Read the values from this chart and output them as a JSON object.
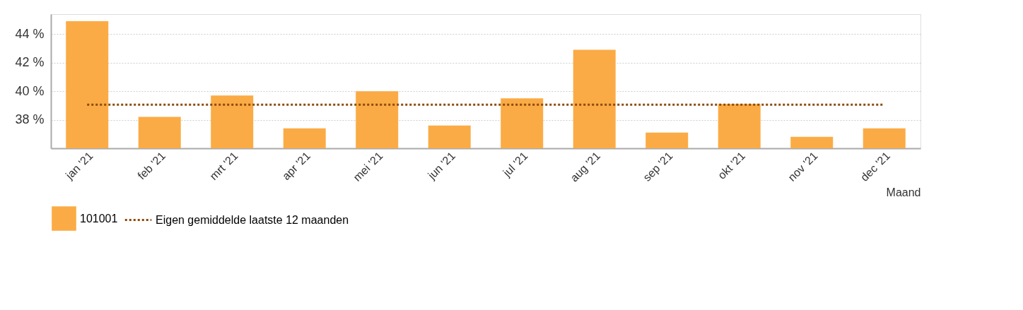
{
  "chart_data": {
    "type": "bar",
    "categories": [
      "jan '21",
      "feb '21",
      "mrt '21",
      "apr '21",
      "mei '21",
      "jun '21",
      "jul '21",
      "aug '21",
      "sep '21",
      "okt '21",
      "nov '21",
      "dec '21"
    ],
    "series": [
      {
        "name": "101001",
        "color": "#fbab45",
        "values": [
          44.9,
          38.2,
          39.7,
          37.4,
          40.0,
          37.6,
          39.5,
          42.9,
          37.1,
          39.1,
          36.8,
          37.4
        ]
      },
      {
        "name": "Eigen gemiddelde laatste 12 maanden",
        "type": "line",
        "color": "#8b4a0c",
        "line_style": "dotted",
        "values": [
          39.05,
          39.05,
          39.05,
          39.05,
          39.05,
          39.05,
          39.05,
          39.05,
          39.05,
          39.05,
          39.05,
          39.05
        ]
      }
    ],
    "xlabel": "Maand",
    "ylim": [
      36,
      45.4
    ],
    "yticks": [
      {
        "value": 38,
        "label": "38 %"
      },
      {
        "value": 40,
        "label": "40 %"
      },
      {
        "value": 42,
        "label": "42 %"
      },
      {
        "value": 44,
        "label": "44 %"
      }
    ],
    "grid": "y",
    "legend": "bottom left",
    "marker": "none"
  }
}
